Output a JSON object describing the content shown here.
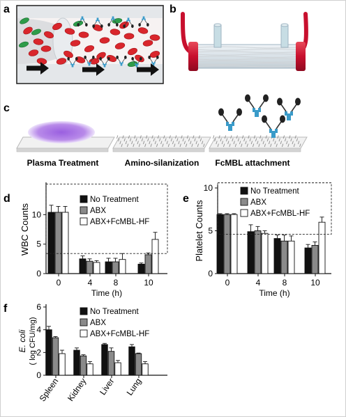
{
  "panels": {
    "a": "a",
    "b": "b",
    "c": "c",
    "d": "d",
    "e": "e",
    "f": "f"
  },
  "steps": [
    "Plasma Treatment",
    "Amino-silanization",
    "FcMBL attachment"
  ],
  "legend": [
    "No Treatment",
    "ABX",
    "ABX+FcMBL-HF"
  ],
  "colors": {
    "no_treatment": "#111111",
    "abx": "#8a8a8a",
    "abx_fcmbl": "#ffffff",
    "blood_red": "#c8102e",
    "rbc": "#d9262c",
    "wbc": "#2e9c4a",
    "fcmbl": "#3a9bc9",
    "plasma": "#a66be0"
  },
  "icons": [
    "arrow-right-icon",
    "red-blood-cell-icon",
    "white-blood-cell-icon",
    "fcmbl-molecule-icon",
    "hollow-fiber-device-icon"
  ],
  "chart_data": [
    {
      "type": "bar",
      "ylabel": "WBC Counts",
      "xlabel": "Time (h)",
      "categories": [
        "0",
        "4",
        "8",
        "10"
      ],
      "ylim": [
        0,
        15
      ],
      "yticks": [
        "0",
        "5",
        "10"
      ],
      "series": [
        {
          "name": "No Treatment",
          "values": [
            10.4,
            2.5,
            2.0,
            1.6
          ],
          "errors": [
            1.2,
            0.5,
            0.6,
            0.2
          ]
        },
        {
          "name": "ABX",
          "values": [
            10.4,
            2.1,
            2.0,
            3.2
          ],
          "errors": [
            1.0,
            0.4,
            0.6,
            0.3
          ]
        },
        {
          "name": "ABX+FcMBL-HF",
          "values": [
            10.4,
            1.9,
            2.4,
            5.8
          ],
          "errors": [
            1.0,
            0.3,
            1.0,
            1.2
          ]
        }
      ]
    },
    {
      "type": "bar",
      "ylabel": "Platelet Counts",
      "xlabel": "Time (h)",
      "categories": [
        "0",
        "4",
        "8",
        "10"
      ],
      "ylim": [
        0,
        10
      ],
      "yticks": [
        "0",
        "5",
        "10"
      ],
      "series": [
        {
          "name": "No Treatment",
          "values": [
            6.9,
            4.9,
            4.1,
            3.0
          ],
          "errors": [
            0.1,
            0.8,
            0.4,
            0.4
          ]
        },
        {
          "name": "ABX",
          "values": [
            6.9,
            5.0,
            3.8,
            3.3
          ],
          "errors": [
            0.1,
            0.5,
            0.7,
            0.4
          ]
        },
        {
          "name": "ABX+FcMBL-HF",
          "values": [
            6.9,
            4.7,
            3.8,
            6.0
          ],
          "errors": [
            0.1,
            0.3,
            0.6,
            0.6
          ]
        }
      ]
    },
    {
      "type": "bar",
      "ylabel_italic": "E. coli",
      "ylabel": "( log CFU/mg)",
      "categories": [
        "Spleen",
        "Kidney",
        "Liver",
        "Lung"
      ],
      "ylim": [
        0,
        6
      ],
      "yticks": [
        "0",
        "2",
        "4",
        "6"
      ],
      "series": [
        {
          "name": "No Treatment",
          "values": [
            4.0,
            2.2,
            2.7,
            2.5
          ],
          "errors": [
            0.3,
            0.2,
            0.1,
            0.2
          ]
        },
        {
          "name": "ABX",
          "values": [
            3.3,
            1.7,
            2.1,
            1.9
          ],
          "errors": [
            0.1,
            0.1,
            0.3,
            0.05
          ]
        },
        {
          "name": "ABX+FcMBL-HF",
          "values": [
            1.9,
            1.0,
            1.1,
            1.0
          ],
          "errors": [
            0.3,
            0.2,
            0.2,
            0.2
          ]
        }
      ]
    }
  ]
}
